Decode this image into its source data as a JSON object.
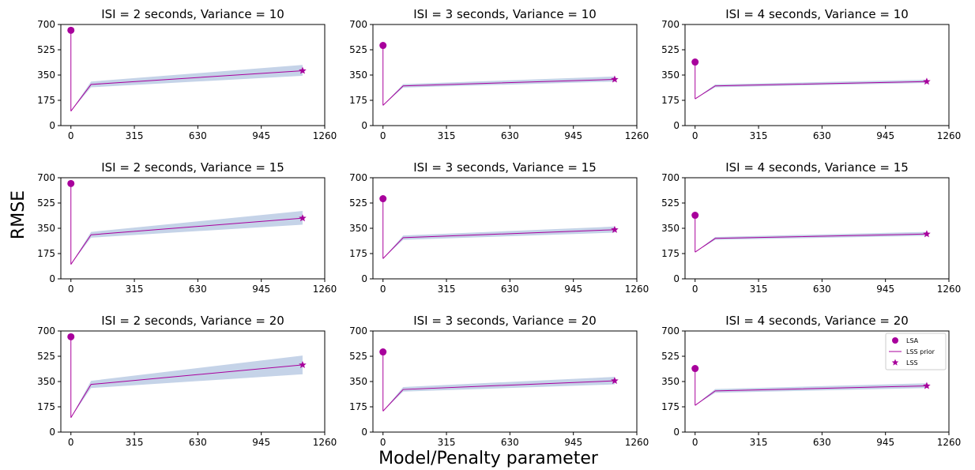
{
  "figure": {
    "ylabel": "RMSE",
    "xlabel": "Model/Penalty parameter"
  },
  "colors": {
    "accent": "#a8009c",
    "band": "#c5d3e8",
    "axis": "#000000"
  },
  "legend": {
    "placement": "top-right of bottom-right panel",
    "entries": [
      {
        "label": "LSA",
        "marker": "circle"
      },
      {
        "label": "LSS prior",
        "marker": "line"
      },
      {
        "label": "LSS",
        "marker": "star"
      }
    ]
  },
  "chart_data": [
    {
      "type": "line",
      "title": "ISI = 2 seconds, Variance = 10",
      "xlim": [
        -50,
        1260
      ],
      "ylim": [
        0,
        700
      ],
      "xticks": [
        0,
        315,
        630,
        945,
        1260
      ],
      "yticks": [
        0,
        175,
        350,
        525,
        700
      ],
      "grid": false,
      "lsa": {
        "x": 0,
        "y": 660
      },
      "series": [
        {
          "name": "LSS prior",
          "x": [
            0,
            100,
            1150
          ],
          "y": [
            100,
            285,
            380
          ],
          "lower": [
            100,
            265,
            345
          ],
          "upper": [
            100,
            305,
            420
          ]
        }
      ],
      "lss": {
        "x": 1150,
        "y": 380
      }
    },
    {
      "type": "line",
      "title": "ISI = 3 seconds, Variance = 10",
      "xlim": [
        -50,
        1260
      ],
      "ylim": [
        0,
        700
      ],
      "xticks": [
        0,
        315,
        630,
        945,
        1260
      ],
      "yticks": [
        0,
        175,
        350,
        525,
        700
      ],
      "grid": false,
      "lsa": {
        "x": 0,
        "y": 555
      },
      "series": [
        {
          "name": "LSS prior",
          "x": [
            0,
            100,
            1150
          ],
          "y": [
            140,
            275,
            320
          ],
          "lower": [
            140,
            263,
            305
          ],
          "upper": [
            140,
            287,
            340
          ]
        }
      ],
      "lss": {
        "x": 1150,
        "y": 320
      }
    },
    {
      "type": "line",
      "title": "ISI = 4 seconds, Variance = 10",
      "xlim": [
        -50,
        1260
      ],
      "ylim": [
        0,
        700
      ],
      "xticks": [
        0,
        315,
        630,
        945,
        1260
      ],
      "yticks": [
        0,
        175,
        350,
        525,
        700
      ],
      "grid": false,
      "lsa": {
        "x": 0,
        "y": 440
      },
      "series": [
        {
          "name": "LSS prior",
          "x": [
            0,
            100,
            1150
          ],
          "y": [
            185,
            275,
            305
          ],
          "lower": [
            185,
            265,
            295
          ],
          "upper": [
            185,
            285,
            318
          ]
        }
      ],
      "lss": {
        "x": 1150,
        "y": 305
      }
    },
    {
      "type": "line",
      "title": "ISI = 2 seconds, Variance = 15",
      "xlim": [
        -50,
        1260
      ],
      "ylim": [
        0,
        700
      ],
      "xticks": [
        0,
        315,
        630,
        945,
        1260
      ],
      "yticks": [
        0,
        175,
        350,
        525,
        700
      ],
      "grid": false,
      "lsa": {
        "x": 0,
        "y": 660
      },
      "series": [
        {
          "name": "LSS prior",
          "x": [
            0,
            100,
            1150
          ],
          "y": [
            100,
            305,
            420
          ],
          "lower": [
            100,
            285,
            375
          ],
          "upper": [
            100,
            325,
            470
          ]
        }
      ],
      "lss": {
        "x": 1150,
        "y": 420
      }
    },
    {
      "type": "line",
      "title": "ISI = 3 seconds, Variance = 15",
      "xlim": [
        -50,
        1260
      ],
      "ylim": [
        0,
        700
      ],
      "xticks": [
        0,
        315,
        630,
        945,
        1260
      ],
      "yticks": [
        0,
        175,
        350,
        525,
        700
      ],
      "grid": false,
      "lsa": {
        "x": 0,
        "y": 555
      },
      "series": [
        {
          "name": "LSS prior",
          "x": [
            0,
            100,
            1150
          ],
          "y": [
            140,
            285,
            340
          ],
          "lower": [
            140,
            270,
            320
          ],
          "upper": [
            140,
            300,
            362
          ]
        }
      ],
      "lss": {
        "x": 1150,
        "y": 340
      }
    },
    {
      "type": "line",
      "title": "ISI = 4 seconds, Variance = 15",
      "xlim": [
        -50,
        1260
      ],
      "ylim": [
        0,
        700
      ],
      "xticks": [
        0,
        315,
        630,
        945,
        1260
      ],
      "yticks": [
        0,
        175,
        350,
        525,
        700
      ],
      "grid": false,
      "lsa": {
        "x": 0,
        "y": 440
      },
      "series": [
        {
          "name": "LSS prior",
          "x": [
            0,
            100,
            1150
          ],
          "y": [
            185,
            280,
            310
          ],
          "lower": [
            185,
            270,
            298
          ],
          "upper": [
            185,
            290,
            325
          ]
        }
      ],
      "lss": {
        "x": 1150,
        "y": 310
      }
    },
    {
      "type": "line",
      "title": "ISI = 2 seconds, Variance = 20",
      "xlim": [
        -50,
        1260
      ],
      "ylim": [
        0,
        700
      ],
      "xticks": [
        0,
        315,
        630,
        945,
        1260
      ],
      "yticks": [
        0,
        175,
        350,
        525,
        700
      ],
      "grid": false,
      "lsa": {
        "x": 0,
        "y": 660
      },
      "series": [
        {
          "name": "LSS prior",
          "x": [
            0,
            100,
            1150
          ],
          "y": [
            100,
            330,
            465
          ],
          "lower": [
            100,
            305,
            400
          ],
          "upper": [
            100,
            355,
            530
          ]
        }
      ],
      "lss": {
        "x": 1150,
        "y": 465
      }
    },
    {
      "type": "line",
      "title": "ISI = 3 seconds, Variance = 20",
      "xlim": [
        -50,
        1260
      ],
      "ylim": [
        0,
        700
      ],
      "xticks": [
        0,
        315,
        630,
        945,
        1260
      ],
      "yticks": [
        0,
        175,
        350,
        525,
        700
      ],
      "grid": false,
      "lsa": {
        "x": 0,
        "y": 555
      },
      "series": [
        {
          "name": "LSS prior",
          "x": [
            0,
            100,
            1150
          ],
          "y": [
            145,
            295,
            355
          ],
          "lower": [
            145,
            280,
            330
          ],
          "upper": [
            145,
            312,
            382
          ]
        }
      ],
      "lss": {
        "x": 1150,
        "y": 355
      }
    },
    {
      "type": "line",
      "title": "ISI = 4 seconds, Variance = 20",
      "xlim": [
        -50,
        1260
      ],
      "ylim": [
        0,
        700
      ],
      "xticks": [
        0,
        315,
        630,
        945,
        1260
      ],
      "yticks": [
        0,
        175,
        350,
        525,
        700
      ],
      "grid": false,
      "lsa": {
        "x": 0,
        "y": 440
      },
      "series": [
        {
          "name": "LSS prior",
          "x": [
            0,
            100,
            1150
          ],
          "y": [
            185,
            285,
            320
          ],
          "lower": [
            185,
            272,
            305
          ],
          "upper": [
            185,
            298,
            338
          ]
        }
      ],
      "lss": {
        "x": 1150,
        "y": 320
      }
    }
  ]
}
